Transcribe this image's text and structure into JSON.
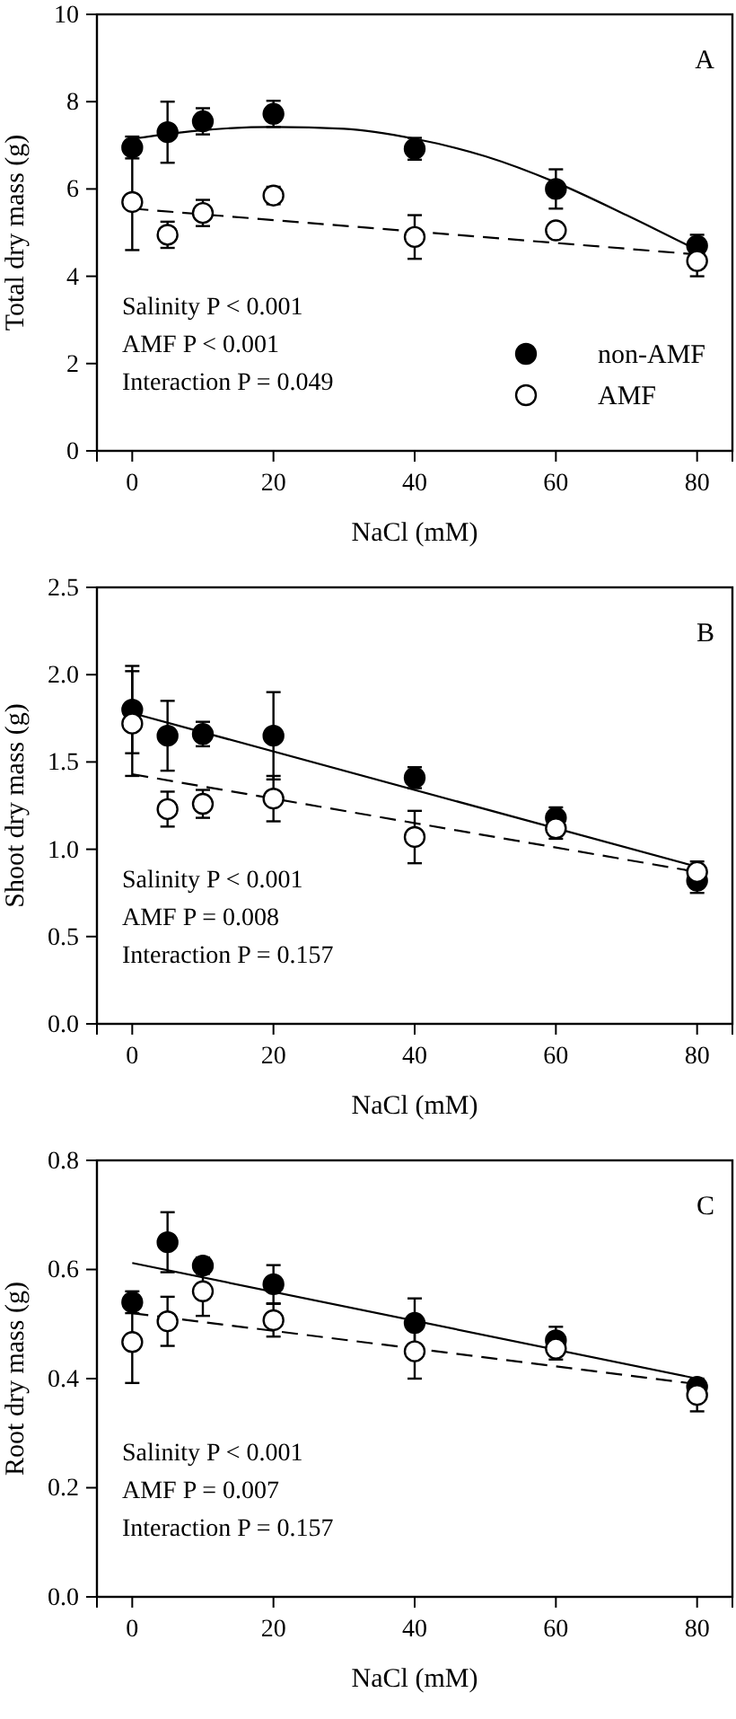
{
  "chart_data": [
    {
      "type": "scatter",
      "xlabel": "NaCl (mM)",
      "ylabel": "Total dry mass (g)",
      "x": [
        0,
        5,
        10,
        20,
        40,
        60,
        80
      ],
      "xlim": [
        -5,
        85
      ],
      "xticks": [
        0,
        20,
        40,
        60,
        80
      ],
      "ylim": [
        0,
        10
      ],
      "yticks": [
        0,
        2,
        4,
        6,
        8,
        10
      ],
      "grid": false,
      "legend": "bottom right",
      "marker": "circle",
      "annotations": [
        "A",
        "Salinity P < 0.001",
        "AMF P < 0.001",
        "Interaction P = 0.049"
      ],
      "series": [
        {
          "name": "non-AMF",
          "color": "#000000",
          "values": [
            6.95,
            7.3,
            7.55,
            7.72,
            6.92,
            6.0,
            4.7
          ],
          "errors": [
            0.25,
            0.7,
            0.3,
            0.3,
            0.25,
            0.45,
            0.25
          ]
        },
        {
          "name": "AMF",
          "color": "#ffffff",
          "values": [
            5.7,
            4.95,
            5.45,
            5.85,
            4.9,
            5.05,
            4.35
          ],
          "errors": [
            1.1,
            0.3,
            0.3,
            0.2,
            0.5,
            null,
            0.35
          ]
        },
        {
          "type": "line",
          "color": "#000000",
          "line_style": "solid",
          "marker": "none",
          "x": [
            0,
            10,
            20,
            30,
            40,
            50,
            60,
            70,
            80
          ],
          "values": [
            7.15,
            7.35,
            7.42,
            7.38,
            7.15,
            6.75,
            6.15,
            5.4,
            4.6
          ]
        },
        {
          "type": "line",
          "color": "#000000",
          "line_style": "dashed",
          "marker": "none",
          "x": [
            0,
            80
          ],
          "values": [
            5.55,
            4.5
          ]
        }
      ]
    },
    {
      "type": "scatter",
      "xlabel": "NaCl (mM)",
      "ylabel": "Shoot dry mass (g)",
      "x": [
        0,
        5,
        10,
        20,
        40,
        60,
        80
      ],
      "xlim": [
        -5,
        85
      ],
      "xticks": [
        0,
        20,
        40,
        60,
        80
      ],
      "ylim": [
        0,
        2.5
      ],
      "yticks": [
        {
          "value": 0,
          "label": "0.0"
        },
        0.5,
        {
          "value": 1,
          "label": "1.0"
        },
        1.5,
        {
          "value": 2,
          "label": "2.0"
        },
        2.5
      ],
      "grid": false,
      "marker": "circle",
      "annotations": [
        "B",
        "Salinity P < 0.001",
        "AMF P = 0.008",
        "Interaction P = 0.157"
      ],
      "series": [
        {
          "color": "#000000",
          "values": [
            1.8,
            1.65,
            1.66,
            1.65,
            1.41,
            1.18,
            0.82
          ],
          "errors": [
            0.25,
            0.2,
            0.07,
            0.25,
            0.06,
            0.06,
            0.07
          ]
        },
        {
          "color": "#ffffff",
          "values": [
            1.72,
            1.23,
            1.26,
            1.29,
            1.07,
            1.12,
            0.87
          ],
          "errors": [
            0.3,
            0.1,
            0.08,
            0.13,
            0.15,
            0.06,
            0.06
          ]
        },
        {
          "type": "line",
          "color": "#000000",
          "line_style": "solid",
          "marker": "none",
          "x": [
            0,
            80
          ],
          "values": [
            1.78,
            0.9
          ]
        },
        {
          "type": "line",
          "color": "#000000",
          "line_style": "dashed",
          "marker": "none",
          "x": [
            0,
            80
          ],
          "values": [
            1.43,
            0.87
          ]
        }
      ]
    },
    {
      "type": "scatter",
      "xlabel": "NaCl (mM)",
      "ylabel": "Root dry mass (g)",
      "x": [
        0,
        5,
        10,
        20,
        40,
        60,
        80
      ],
      "xlim": [
        -5,
        85
      ],
      "xticks": [
        0,
        20,
        40,
        60,
        80
      ],
      "ylim": [
        0,
        0.8
      ],
      "yticks": [
        {
          "value": 0,
          "label": "0.0"
        },
        0.2,
        0.4,
        0.6,
        0.8
      ],
      "grid": false,
      "marker": "circle",
      "annotations": [
        "C",
        "Salinity P < 0.001",
        "AMF P = 0.007",
        "Interaction P = 0.157"
      ],
      "series": [
        {
          "color": "#000000",
          "values": [
            0.54,
            0.65,
            0.607,
            0.573,
            0.502,
            0.47,
            0.385
          ],
          "errors": [
            0.02,
            0.055,
            0.015,
            0.035,
            0.045,
            0.025,
            null
          ]
        },
        {
          "color": "#ffffff",
          "values": [
            0.467,
            0.505,
            0.56,
            0.507,
            0.45,
            0.455,
            0.37
          ],
          "errors": [
            0.075,
            0.045,
            0.045,
            0.03,
            0.05,
            0.02,
            0.03
          ]
        },
        {
          "type": "line",
          "color": "#000000",
          "line_style": "solid",
          "marker": "none",
          "x": [
            0,
            80
          ],
          "values": [
            0.612,
            0.4
          ]
        },
        {
          "type": "line",
          "color": "#000000",
          "line_style": "dashed",
          "marker": "none",
          "x": [
            0,
            80
          ],
          "values": [
            0.52,
            0.39
          ]
        }
      ]
    }
  ]
}
